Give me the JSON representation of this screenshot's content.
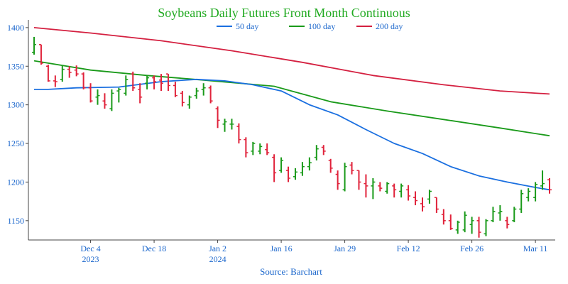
{
  "chart_data": {
    "type": "ohlc",
    "title": "Soybeans Daily Futures Front Month Continuous",
    "source": "Source: Barchart",
    "ylim": [
      1125,
      1410
    ],
    "yticks": [
      1150,
      1200,
      1250,
      1300,
      1350,
      1400
    ],
    "xlim": [
      0,
      73
    ],
    "xticks": [
      {
        "x": 8,
        "label": "Dec 4",
        "sublabel": "2023"
      },
      {
        "x": 17,
        "label": "Dec 18",
        "sublabel": ""
      },
      {
        "x": 26,
        "label": "Jan 2",
        "sublabel": "2024"
      },
      {
        "x": 35,
        "label": "Jan 16",
        "sublabel": ""
      },
      {
        "x": 44,
        "label": "Jan 29",
        "sublabel": ""
      },
      {
        "x": 53,
        "label": "Feb 12",
        "sublabel": ""
      },
      {
        "x": 62,
        "label": "Feb 26",
        "sublabel": ""
      },
      {
        "x": 71,
        "label": "Mar 11",
        "sublabel": ""
      }
    ],
    "colors": {
      "title": "#22aa22",
      "up": "#1a9a1a",
      "down": "#e0223a",
      "axis": "#1a66cc",
      "source": "#1a66cc",
      "ma50": "#1a6fe0",
      "ma100": "#1a9a1a",
      "ma200": "#d42040"
    },
    "legend": [
      {
        "key": "ma50",
        "label": "50 day"
      },
      {
        "key": "ma100",
        "label": "100 day"
      },
      {
        "key": "ma200",
        "label": "200 day"
      }
    ],
    "ohlc": [
      [
        0,
        1368,
        1388,
        1365,
        1378
      ],
      [
        1,
        1378,
        1378,
        1352,
        1354
      ],
      [
        2,
        1350,
        1352,
        1330,
        1331
      ],
      [
        3,
        1331,
        1338,
        1323,
        1330
      ],
      [
        4,
        1333,
        1351,
        1330,
        1346
      ],
      [
        5,
        1346,
        1350,
        1335,
        1342
      ],
      [
        6,
        1345,
        1351,
        1337,
        1340
      ],
      [
        7,
        1340,
        1342,
        1320,
        1322
      ],
      [
        8,
        1322,
        1328,
        1303,
        1305
      ],
      [
        9,
        1310,
        1320,
        1300,
        1312
      ],
      [
        10,
        1305,
        1315,
        1295,
        1300
      ],
      [
        11,
        1295,
        1320,
        1292,
        1315
      ],
      [
        12,
        1318,
        1322,
        1303,
        1320
      ],
      [
        13,
        1315,
        1338,
        1312,
        1333
      ],
      [
        14,
        1340,
        1343,
        1318,
        1322
      ],
      [
        15,
        1320,
        1328,
        1302,
        1310
      ],
      [
        16,
        1328,
        1338,
        1320,
        1335
      ],
      [
        17,
        1335,
        1338,
        1320,
        1330
      ],
      [
        18,
        1332,
        1340,
        1318,
        1328
      ],
      [
        19,
        1340,
        1340,
        1318,
        1325
      ],
      [
        20,
        1325,
        1330,
        1310,
        1312
      ],
      [
        21,
        1315,
        1318,
        1298,
        1303
      ],
      [
        22,
        1300,
        1312,
        1295,
        1310
      ],
      [
        23,
        1312,
        1322,
        1308,
        1318
      ],
      [
        24,
        1320,
        1328,
        1312,
        1322
      ],
      [
        25,
        1322,
        1325,
        1302,
        1305
      ],
      [
        26,
        1295,
        1298,
        1270,
        1280
      ],
      [
        27,
        1275,
        1282,
        1265,
        1278
      ],
      [
        28,
        1275,
        1282,
        1268,
        1275
      ],
      [
        29,
        1272,
        1276,
        1250,
        1255
      ],
      [
        30,
        1255,
        1258,
        1232,
        1238
      ],
      [
        31,
        1240,
        1252,
        1235,
        1250
      ],
      [
        32,
        1240,
        1250,
        1236,
        1246
      ],
      [
        33,
        1242,
        1250,
        1235,
        1238
      ],
      [
        34,
        1232,
        1236,
        1200,
        1212
      ],
      [
        35,
        1215,
        1232,
        1212,
        1228
      ],
      [
        36,
        1215,
        1220,
        1200,
        1205
      ],
      [
        37,
        1207,
        1218,
        1203,
        1213
      ],
      [
        38,
        1212,
        1226,
        1208,
        1220
      ],
      [
        39,
        1220,
        1232,
        1215,
        1225
      ],
      [
        40,
        1232,
        1248,
        1228,
        1243
      ],
      [
        41,
        1245,
        1248,
        1235,
        1240
      ],
      [
        42,
        1228,
        1230,
        1212,
        1218
      ],
      [
        43,
        1210,
        1215,
        1190,
        1198
      ],
      [
        44,
        1190,
        1225,
        1188,
        1220
      ],
      [
        45,
        1222,
        1226,
        1210,
        1215
      ],
      [
        46,
        1215,
        1215,
        1190,
        1200
      ],
      [
        47,
        1198,
        1210,
        1180,
        1195
      ],
      [
        48,
        1195,
        1205,
        1178,
        1200
      ],
      [
        49,
        1195,
        1200,
        1188,
        1192
      ],
      [
        50,
        1188,
        1200,
        1185,
        1198
      ],
      [
        51,
        1195,
        1198,
        1180,
        1190
      ],
      [
        52,
        1188,
        1198,
        1180,
        1195
      ],
      [
        53,
        1190,
        1196,
        1176,
        1182
      ],
      [
        54,
        1180,
        1188,
        1170,
        1176
      ],
      [
        55,
        1172,
        1180,
        1162,
        1168
      ],
      [
        56,
        1178,
        1190,
        1172,
        1188
      ],
      [
        57,
        1180,
        1180,
        1160,
        1165
      ],
      [
        58,
        1158,
        1165,
        1145,
        1150
      ],
      [
        59,
        1150,
        1158,
        1138,
        1140
      ],
      [
        60,
        1138,
        1150,
        1133,
        1148
      ],
      [
        61,
        1138,
        1162,
        1135,
        1157
      ],
      [
        62,
        1145,
        1155,
        1133,
        1150
      ],
      [
        63,
        1150,
        1155,
        1128,
        1135
      ],
      [
        64,
        1133,
        1152,
        1130,
        1150
      ],
      [
        65,
        1150,
        1168,
        1148,
        1162
      ],
      [
        66,
        1160,
        1170,
        1150,
        1162
      ],
      [
        67,
        1150,
        1155,
        1140,
        1145
      ],
      [
        68,
        1150,
        1168,
        1148,
        1165
      ],
      [
        69,
        1165,
        1190,
        1160,
        1185
      ],
      [
        70,
        1180,
        1192,
        1175,
        1188
      ],
      [
        71,
        1180,
        1200,
        1175,
        1197
      ],
      [
        72,
        1195,
        1215,
        1190,
        1198
      ],
      [
        73,
        1203,
        1205,
        1185,
        1190
      ]
    ],
    "ma50": [
      [
        0,
        1320
      ],
      [
        2,
        1320
      ],
      [
        6,
        1322
      ],
      [
        12,
        1323
      ],
      [
        18,
        1330
      ],
      [
        23,
        1333
      ],
      [
        27,
        1331
      ],
      [
        31,
        1326
      ],
      [
        35,
        1318
      ],
      [
        39,
        1300
      ],
      [
        43,
        1287
      ],
      [
        47,
        1268
      ],
      [
        51,
        1250
      ],
      [
        55,
        1237
      ],
      [
        59,
        1220
      ],
      [
        63,
        1208
      ],
      [
        67,
        1200
      ],
      [
        71,
        1193
      ],
      [
        73,
        1190
      ]
    ],
    "ma100": [
      [
        0,
        1357
      ],
      [
        8,
        1345
      ],
      [
        16,
        1338
      ],
      [
        24,
        1332
      ],
      [
        34,
        1324
      ],
      [
        42,
        1304
      ],
      [
        50,
        1292
      ],
      [
        58,
        1281
      ],
      [
        66,
        1270
      ],
      [
        73,
        1260
      ]
    ],
    "ma200": [
      [
        0,
        1400
      ],
      [
        8,
        1393
      ],
      [
        18,
        1383
      ],
      [
        28,
        1370
      ],
      [
        38,
        1355
      ],
      [
        48,
        1338
      ],
      [
        58,
        1326
      ],
      [
        66,
        1318
      ],
      [
        73,
        1314
      ]
    ]
  }
}
